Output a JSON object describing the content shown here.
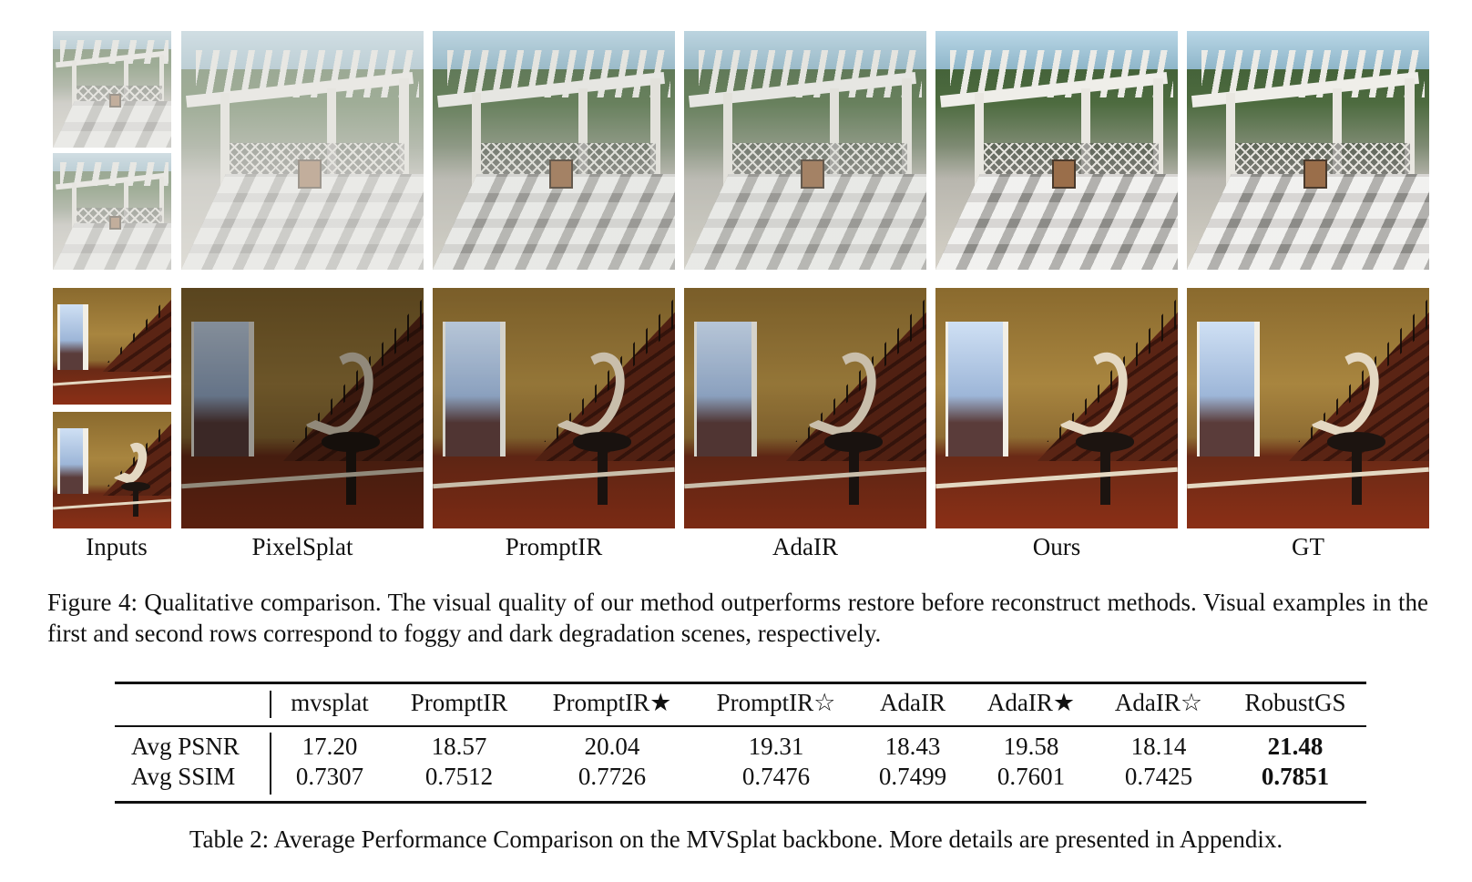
{
  "figure": {
    "columns": [
      "Inputs",
      "PixelSplat",
      "PromptIR",
      "AdaIR",
      "Ours",
      "GT"
    ],
    "caption": "Figure 4: Qualitative comparison. The visual quality of our method outperforms restore before reconstruct methods. Visual examples in the first and second rows correspond to foggy and dark degradation scenes, respectively."
  },
  "table": {
    "headers": [
      "",
      "mvsplat",
      "PromptIR",
      "PromptIR★",
      "PromptIR☆",
      "AdaIR",
      "AdaIR★",
      "AdaIR☆",
      "RobustGS"
    ],
    "rows": [
      {
        "label": "Avg PSNR",
        "values": [
          "17.20",
          "18.57",
          "20.04",
          "19.31",
          "18.43",
          "19.58",
          "18.14",
          "21.48"
        ]
      },
      {
        "label": "Avg SSIM",
        "values": [
          "0.7307",
          "0.7512",
          "0.7726",
          "0.7476",
          "0.7499",
          "0.7601",
          "0.7425",
          "0.7851"
        ]
      }
    ],
    "caption": "Table 2: Average Performance Comparison on the MVSplat backbone. More details are presented in Appendix."
  }
}
